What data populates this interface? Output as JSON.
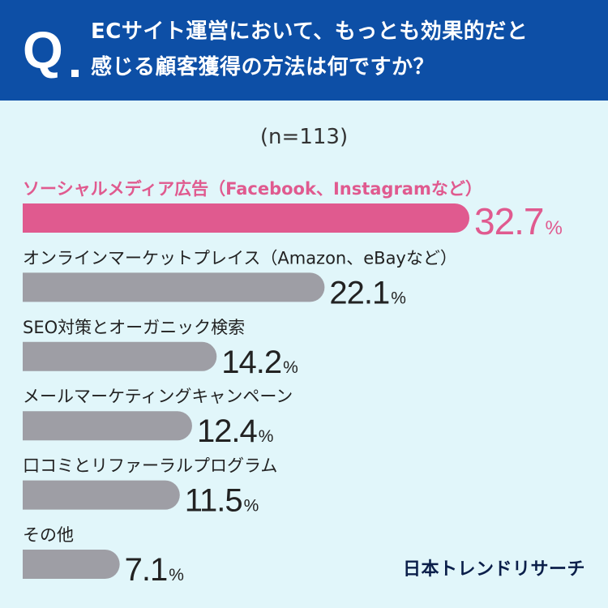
{
  "question": {
    "mark": "Q",
    "line1": "ECサイト運営において、もっとも効果的だと",
    "line2": "感じる顧客獲得の方法は何ですか？"
  },
  "sample_size": "(n=113)",
  "brand": "日本トレンドリサーチ",
  "colors": {
    "header": "#0d4fa6",
    "highlight": "#e05a8f",
    "bar": "#9e9ea5",
    "background": "#e1f6fa"
  },
  "chart_data": {
    "type": "bar",
    "orientation": "horizontal",
    "unit": "%",
    "categories": [
      "ソーシャルメディア広告（Facebook、Instagramなど）",
      "オンラインマーケットプレイス（Amazon、eBayなど）",
      "SEO対策とオーガニック検索",
      "メールマーケティングキャンペーン",
      "口コミとリファーラルプログラム",
      "その他"
    ],
    "values": [
      32.7,
      22.1,
      14.2,
      12.4,
      11.5,
      7.1
    ],
    "value_labels": [
      "32.7",
      "22.1",
      "14.2",
      "12.4",
      "11.5",
      "7.1"
    ],
    "highlight_index": 0
  }
}
